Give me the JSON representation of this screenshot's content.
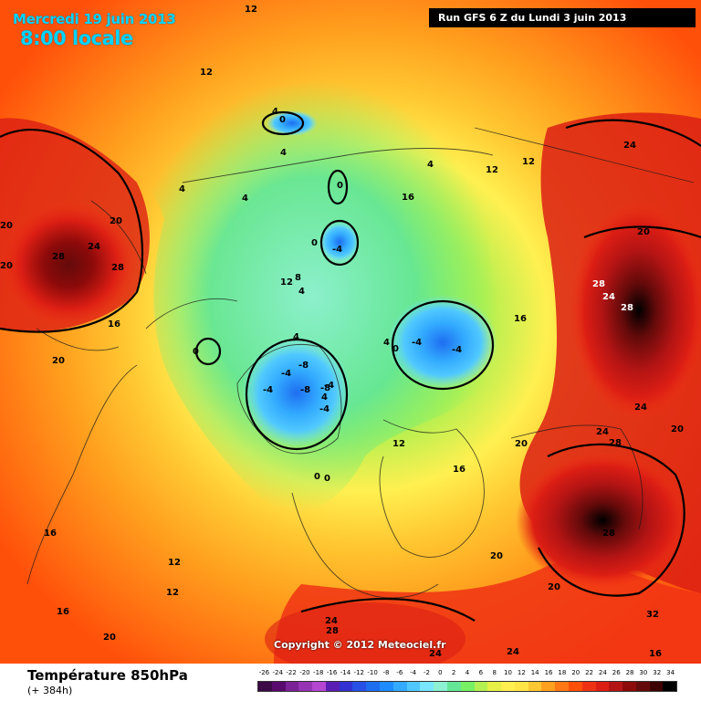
{
  "header": {
    "date_line": "Mercredi 19 juin 2013",
    "hour_line": "8:00 locale",
    "run_line": "Run GFS 6 Z du Lundi 3 juin 2013"
  },
  "footer": {
    "param_title": "Température 850hPa",
    "param_sub": "(+ 384h)",
    "copyright": "Copyright © 2012 Meteociel.fr"
  },
  "legend": {
    "ticks": [
      "-26",
      "-24",
      "-22",
      "-20",
      "-18",
      "-16",
      "-14",
      "-12",
      "-10",
      "-8",
      "-6",
      "-4",
      "-2",
      "0",
      "2",
      "4",
      "6",
      "8",
      "10",
      "12",
      "14",
      "16",
      "18",
      "20",
      "22",
      "24",
      "26",
      "28",
      "30",
      "32",
      "34"
    ],
    "colors": [
      "#3c0a46",
      "#5a0a6e",
      "#7a2296",
      "#9632b4",
      "#b446d2",
      "#5a1eb4",
      "#3232d2",
      "#2850e6",
      "#1e6ef0",
      "#1e8cff",
      "#32aaff",
      "#50c8ff",
      "#78e6ff",
      "#8cf0d2",
      "#64e696",
      "#78f064",
      "#b4f050",
      "#e6f046",
      "#fff050",
      "#ffe646",
      "#ffc832",
      "#ffa01e",
      "#ff7814",
      "#ff500a",
      "#f03214",
      "#dc1e14",
      "#b41414",
      "#8c0a0a",
      "#640a0a",
      "#3c0000",
      "#000000"
    ]
  },
  "map": {
    "description_colors": {
      "warm_core": "#8c0a0a",
      "hot": "#dc1e14",
      "orange": "#ff7814",
      "yellow": "#fff050",
      "green": "#64e696",
      "cyan": "#50c8ff",
      "blue": "#1e8cff"
    },
    "isotherm_labels": [
      "12",
      "12",
      "4",
      "0",
      "4",
      "4",
      "4",
      "0",
      "0",
      "-4",
      "16",
      "4",
      "12",
      "12",
      "24",
      "20",
      "20",
      "28",
      "24",
      "28",
      "20",
      "20",
      "28",
      "24",
      "28",
      "8",
      "12",
      "4",
      "16",
      "0",
      "4",
      "-4",
      "-4",
      "-8",
      "4",
      "0",
      "-8",
      "-8",
      "-4",
      "-4",
      "4",
      "-4",
      "-4",
      "0",
      "0",
      "12",
      "16",
      "20",
      "20",
      "24",
      "24",
      "28",
      "20",
      "16",
      "12",
      "12",
      "16",
      "20",
      "24",
      "28",
      "20",
      "24",
      "24",
      "16",
      "16",
      "20",
      "28",
      "32"
    ]
  }
}
